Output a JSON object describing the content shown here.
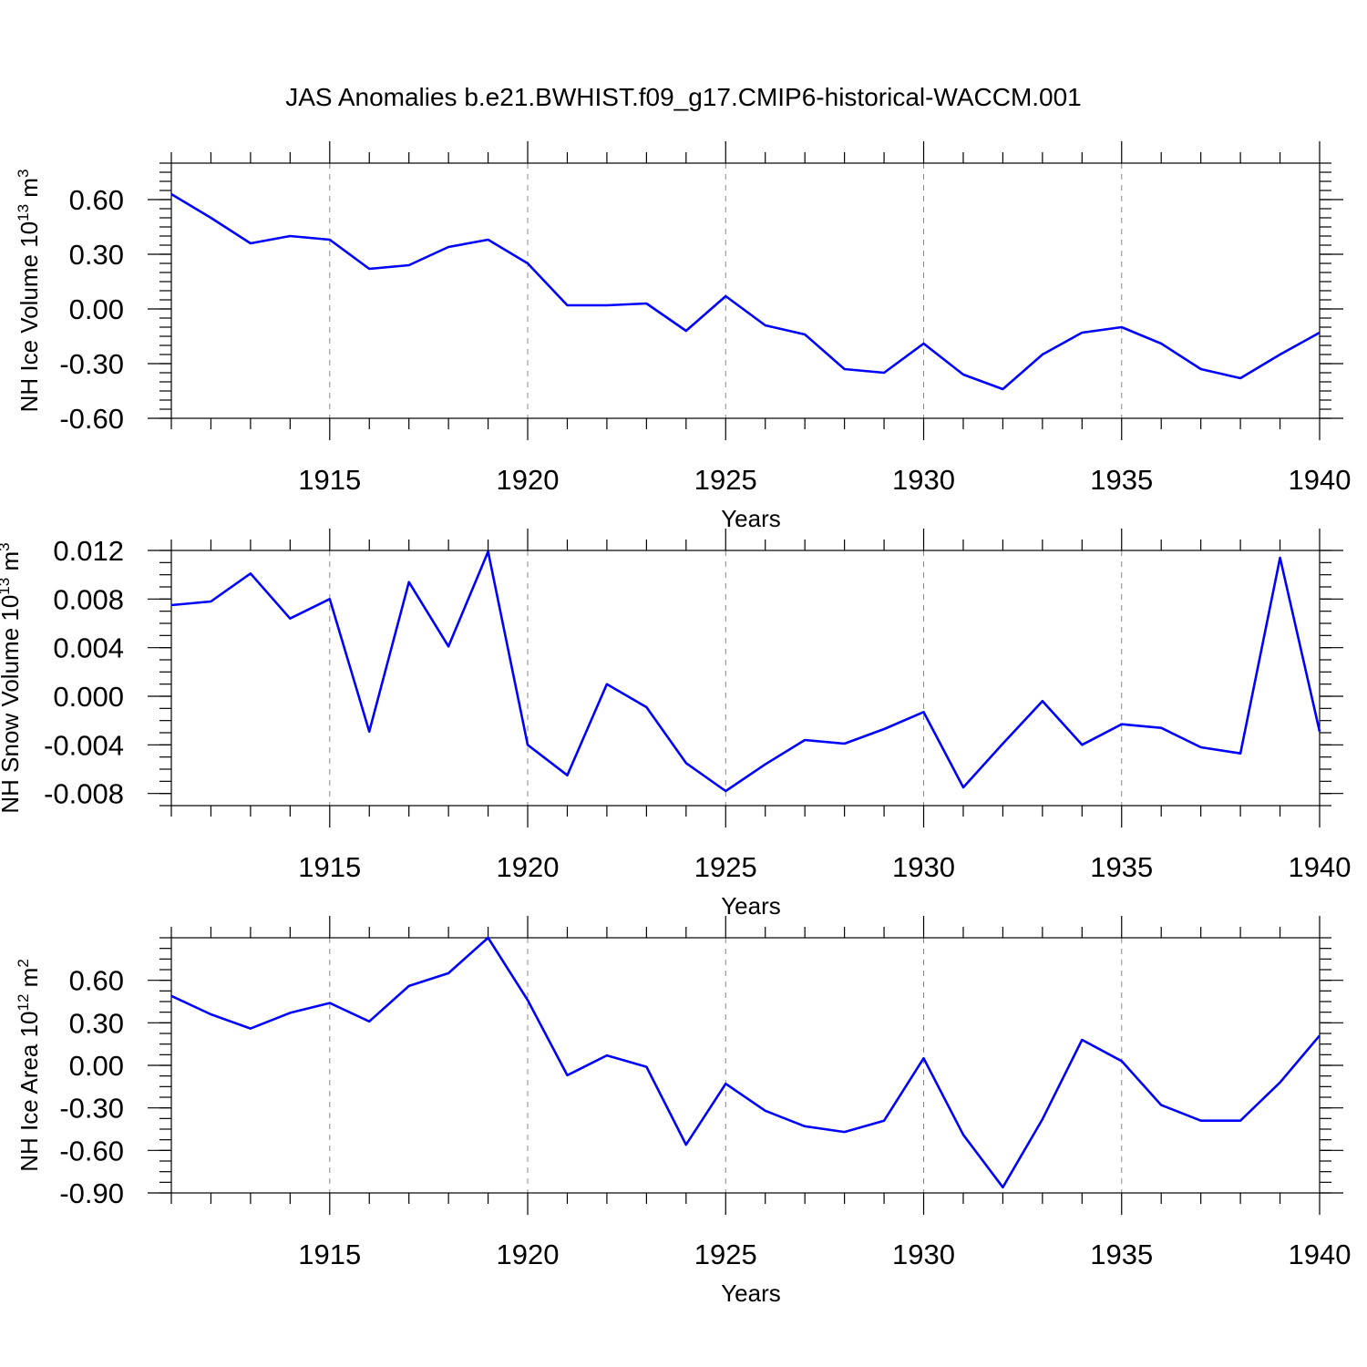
{
  "title": "JAS Anomalies b.e21.BWHIST.f09_g17.CMIP6-historical-WACCM.001",
  "line_color": "#0000ff",
  "chart_data": [
    {
      "type": "line",
      "title": "JAS Anomalies b.e21.BWHIST.f09_g17.CMIP6-historical-WACCM.001",
      "xlabel": "Years",
      "ylabel": {
        "main": "NH Ice Volume 10",
        "exp": "13",
        "unit": " m",
        "unit_exp": "3"
      },
      "xlim": [
        1911,
        1940
      ],
      "ylim": [
        -0.6,
        0.8
      ],
      "x_ticks": [
        1915,
        1920,
        1925,
        1930,
        1935,
        1940
      ],
      "y_ticks": [
        -0.6,
        -0.3,
        0.0,
        0.3,
        0.6
      ],
      "y_tick_labels": [
        "-0.60",
        "-0.30",
        "0.00",
        "0.30",
        "0.60"
      ],
      "y_minor_step": 0.05,
      "x": [
        1911,
        1912,
        1913,
        1914,
        1915,
        1916,
        1917,
        1918,
        1919,
        1920,
        1921,
        1922,
        1923,
        1924,
        1925,
        1926,
        1927,
        1928,
        1929,
        1930,
        1931,
        1932,
        1933,
        1934,
        1935,
        1936,
        1937,
        1938,
        1939,
        1940
      ],
      "values": [
        0.63,
        0.5,
        0.36,
        0.4,
        0.38,
        0.22,
        0.24,
        0.34,
        0.38,
        0.25,
        0.02,
        0.02,
        0.03,
        -0.12,
        0.07,
        -0.09,
        -0.14,
        -0.33,
        -0.35,
        -0.19,
        -0.36,
        -0.44,
        -0.25,
        -0.13,
        -0.1,
        -0.19,
        -0.33,
        -0.38,
        -0.25,
        -0.13
      ]
    },
    {
      "type": "line",
      "xlabel": "Years",
      "ylabel": {
        "main": "NH Snow Volume 10",
        "exp": "13",
        "unit": " m",
        "unit_exp": "3"
      },
      "xlim": [
        1911,
        1940
      ],
      "ylim": [
        -0.009,
        0.012
      ],
      "x_ticks": [
        1915,
        1920,
        1925,
        1930,
        1935,
        1940
      ],
      "y_ticks": [
        -0.008,
        -0.004,
        0.0,
        0.004,
        0.008,
        0.012
      ],
      "y_tick_labels": [
        "-0.008",
        "-0.004",
        "0.000",
        "0.004",
        "0.008",
        "0.012"
      ],
      "y_minor_step": 0.001,
      "x": [
        1911,
        1912,
        1913,
        1914,
        1915,
        1916,
        1917,
        1918,
        1919,
        1920,
        1921,
        1922,
        1923,
        1924,
        1925,
        1926,
        1927,
        1928,
        1929,
        1930,
        1931,
        1932,
        1933,
        1934,
        1935,
        1936,
        1937,
        1938,
        1939,
        1940
      ],
      "values": [
        0.0075,
        0.0078,
        0.0101,
        0.0064,
        0.008,
        -0.0029,
        0.0094,
        0.0041,
        0.0119,
        -0.004,
        -0.0065,
        0.001,
        -0.0009,
        -0.0055,
        -0.0078,
        -0.0056,
        -0.0036,
        -0.0039,
        -0.0027,
        -0.0013,
        -0.0075,
        -0.0039,
        -0.0004,
        -0.004,
        -0.0023,
        -0.0026,
        -0.0042,
        -0.0047,
        0.0114,
        -0.0029
      ]
    },
    {
      "type": "line",
      "xlabel": "Years",
      "ylabel": {
        "main": "NH Ice Area 10",
        "exp": "12",
        "unit": " m",
        "unit_exp": "2"
      },
      "xlim": [
        1911,
        1940
      ],
      "ylim": [
        -0.9,
        0.9
      ],
      "x_ticks": [
        1915,
        1920,
        1925,
        1930,
        1935,
        1940
      ],
      "y_ticks": [
        -0.9,
        -0.6,
        -0.3,
        0.0,
        0.3,
        0.6
      ],
      "y_tick_labels": [
        "-0.90",
        "-0.60",
        "-0.30",
        "0.00",
        "0.30",
        "0.60"
      ],
      "y_minor_step": 0.075,
      "x": [
        1911,
        1912,
        1913,
        1914,
        1915,
        1916,
        1917,
        1918,
        1919,
        1920,
        1921,
        1922,
        1923,
        1924,
        1925,
        1926,
        1927,
        1928,
        1929,
        1930,
        1931,
        1932,
        1933,
        1934,
        1935,
        1936,
        1937,
        1938,
        1939,
        1940
      ],
      "values": [
        0.49,
        0.36,
        0.26,
        0.37,
        0.44,
        0.31,
        0.56,
        0.65,
        0.9,
        0.46,
        -0.07,
        0.07,
        -0.01,
        -0.56,
        -0.13,
        -0.32,
        -0.43,
        -0.47,
        -0.39,
        0.05,
        -0.49,
        -0.86,
        -0.38,
        0.18,
        0.03,
        -0.28,
        -0.39,
        -0.39,
        -0.12,
        0.21
      ]
    }
  ]
}
